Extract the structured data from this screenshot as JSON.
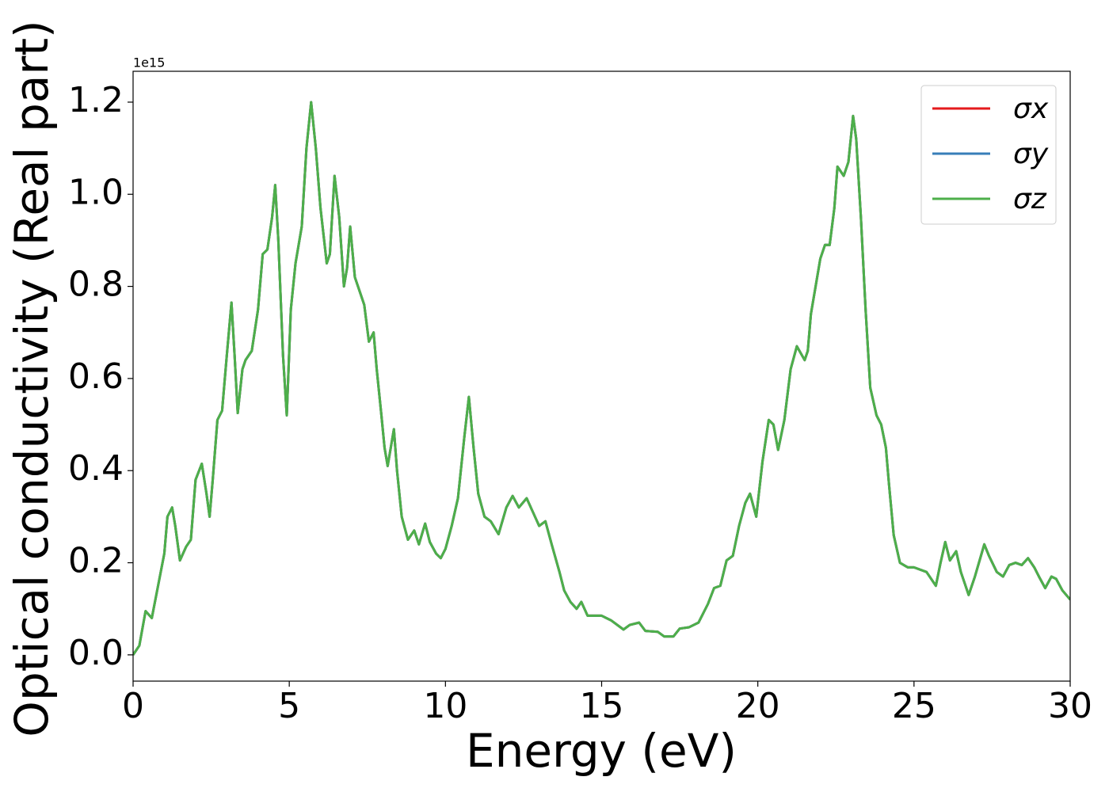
{
  "chart_data": {
    "type": "line",
    "xlabel": "Energy (eV)",
    "ylabel": "Optical conductivity (Real part)",
    "y_offset_label": "1e15",
    "x": [
      0,
      0.2,
      0.4,
      0.6,
      0.8,
      1.0,
      1.1,
      1.25,
      1.35,
      1.5,
      1.7,
      1.85,
      2.0,
      2.2,
      2.35,
      2.45,
      2.55,
      2.7,
      2.85,
      3.0,
      3.15,
      3.25,
      3.35,
      3.5,
      3.6,
      3.8,
      4.0,
      4.15,
      4.3,
      4.45,
      4.55,
      4.65,
      4.8,
      4.92,
      5.05,
      5.2,
      5.4,
      5.55,
      5.7,
      5.85,
      6.0,
      6.2,
      6.3,
      6.45,
      6.6,
      6.75,
      6.85,
      6.95,
      7.1,
      7.25,
      7.4,
      7.55,
      7.7,
      7.8,
      7.95,
      8.05,
      8.15,
      8.35,
      8.45,
      8.6,
      8.8,
      9.0,
      9.15,
      9.35,
      9.5,
      9.7,
      9.85,
      10.0,
      10.2,
      10.4,
      10.6,
      10.75,
      10.9,
      11.05,
      11.25,
      11.45,
      11.7,
      11.95,
      12.15,
      12.35,
      12.6,
      12.8,
      13.0,
      13.2,
      13.4,
      13.65,
      13.8,
      14.0,
      14.2,
      14.35,
      14.55,
      14.8,
      15.0,
      15.3,
      15.7,
      15.9,
      16.2,
      16.4,
      16.8,
      17.0,
      17.3,
      17.5,
      17.8,
      18.1,
      18.4,
      18.6,
      18.8,
      19.0,
      19.2,
      19.4,
      19.6,
      19.75,
      19.95,
      20.15,
      20.35,
      20.5,
      20.65,
      20.85,
      21.05,
      21.25,
      21.5,
      21.6,
      21.7,
      21.85,
      22.0,
      22.15,
      22.3,
      22.45,
      22.55,
      22.75,
      22.9,
      23.05,
      23.15,
      23.3,
      23.45,
      23.6,
      23.8,
      23.95,
      24.1,
      24.2,
      24.35,
      24.55,
      24.8,
      25.0,
      25.4,
      25.7,
      25.85,
      26.0,
      26.15,
      26.35,
      26.5,
      26.75,
      26.95,
      27.25,
      27.4,
      27.65,
      27.85,
      28.05,
      28.25,
      28.45,
      28.65,
      28.85,
      29.0,
      29.2,
      29.4,
      29.55,
      29.75,
      30.0
    ],
    "series": [
      {
        "name": "σx",
        "color": "#e41a1c",
        "values": [
          0,
          0.02,
          0.095,
          0.08,
          0.15,
          0.22,
          0.3,
          0.32,
          0.28,
          0.205,
          0.235,
          0.25,
          0.38,
          0.415,
          0.35,
          0.3,
          0.38,
          0.51,
          0.53,
          0.65,
          0.765,
          0.65,
          0.525,
          0.62,
          0.64,
          0.66,
          0.75,
          0.87,
          0.88,
          0.95,
          1.02,
          0.9,
          0.65,
          0.52,
          0.75,
          0.85,
          0.93,
          1.1,
          1.2,
          1.1,
          0.97,
          0.85,
          0.87,
          1.04,
          0.95,
          0.8,
          0.84,
          0.93,
          0.82,
          0.79,
          0.76,
          0.68,
          0.7,
          0.62,
          0.52,
          0.45,
          0.41,
          0.49,
          0.4,
          0.3,
          0.25,
          0.27,
          0.24,
          0.285,
          0.245,
          0.22,
          0.21,
          0.23,
          0.28,
          0.34,
          0.47,
          0.56,
          0.45,
          0.35,
          0.3,
          0.29,
          0.262,
          0.32,
          0.345,
          0.32,
          0.34,
          0.31,
          0.28,
          0.29,
          0.24,
          0.18,
          0.14,
          0.115,
          0.1,
          0.115,
          0.085,
          0.085,
          0.085,
          0.075,
          0.055,
          0.065,
          0.07,
          0.052,
          0.05,
          0.04,
          0.04,
          0.057,
          0.06,
          0.07,
          0.11,
          0.145,
          0.15,
          0.205,
          0.215,
          0.28,
          0.33,
          0.35,
          0.3,
          0.42,
          0.51,
          0.5,
          0.445,
          0.51,
          0.62,
          0.67,
          0.64,
          0.66,
          0.74,
          0.8,
          0.86,
          0.89,
          0.89,
          0.97,
          1.06,
          1.04,
          1.07,
          1.17,
          1.12,
          0.95,
          0.75,
          0.58,
          0.52,
          0.5,
          0.45,
          0.37,
          0.26,
          0.2,
          0.19,
          0.19,
          0.18,
          0.15,
          0.2,
          0.245,
          0.205,
          0.225,
          0.18,
          0.13,
          0.17,
          0.24,
          0.215,
          0.18,
          0.17,
          0.195,
          0.2,
          0.195,
          0.21,
          0.19,
          0.17,
          0.145,
          0.17,
          0.165,
          0.14,
          0.12
        ]
      },
      {
        "name": "σy",
        "color": "#377eb8",
        "values": [
          0,
          0.02,
          0.095,
          0.08,
          0.15,
          0.22,
          0.3,
          0.32,
          0.28,
          0.205,
          0.235,
          0.25,
          0.38,
          0.415,
          0.35,
          0.3,
          0.38,
          0.51,
          0.53,
          0.65,
          0.765,
          0.65,
          0.525,
          0.62,
          0.64,
          0.66,
          0.75,
          0.87,
          0.88,
          0.95,
          1.02,
          0.9,
          0.65,
          0.52,
          0.75,
          0.85,
          0.93,
          1.1,
          1.2,
          1.1,
          0.97,
          0.85,
          0.87,
          1.04,
          0.95,
          0.8,
          0.84,
          0.93,
          0.82,
          0.79,
          0.76,
          0.68,
          0.7,
          0.62,
          0.52,
          0.45,
          0.41,
          0.49,
          0.4,
          0.3,
          0.25,
          0.27,
          0.24,
          0.285,
          0.245,
          0.22,
          0.21,
          0.23,
          0.28,
          0.34,
          0.47,
          0.56,
          0.45,
          0.35,
          0.3,
          0.29,
          0.262,
          0.32,
          0.345,
          0.32,
          0.34,
          0.31,
          0.28,
          0.29,
          0.24,
          0.18,
          0.14,
          0.115,
          0.1,
          0.115,
          0.085,
          0.085,
          0.085,
          0.075,
          0.055,
          0.065,
          0.07,
          0.052,
          0.05,
          0.04,
          0.04,
          0.057,
          0.06,
          0.07,
          0.11,
          0.145,
          0.15,
          0.205,
          0.215,
          0.28,
          0.33,
          0.35,
          0.3,
          0.42,
          0.51,
          0.5,
          0.445,
          0.51,
          0.62,
          0.67,
          0.64,
          0.66,
          0.74,
          0.8,
          0.86,
          0.89,
          0.89,
          0.97,
          1.06,
          1.04,
          1.07,
          1.17,
          1.12,
          0.95,
          0.75,
          0.58,
          0.52,
          0.5,
          0.45,
          0.37,
          0.26,
          0.2,
          0.19,
          0.19,
          0.18,
          0.15,
          0.2,
          0.245,
          0.205,
          0.225,
          0.18,
          0.13,
          0.17,
          0.24,
          0.215,
          0.18,
          0.17,
          0.195,
          0.2,
          0.195,
          0.21,
          0.19,
          0.17,
          0.145,
          0.17,
          0.165,
          0.14,
          0.12
        ]
      },
      {
        "name": "σz",
        "color": "#4daf4a",
        "values": [
          0,
          0.02,
          0.095,
          0.08,
          0.15,
          0.22,
          0.3,
          0.32,
          0.28,
          0.205,
          0.235,
          0.25,
          0.38,
          0.415,
          0.35,
          0.3,
          0.38,
          0.51,
          0.53,
          0.65,
          0.765,
          0.65,
          0.525,
          0.62,
          0.64,
          0.66,
          0.75,
          0.87,
          0.88,
          0.95,
          1.02,
          0.9,
          0.65,
          0.52,
          0.75,
          0.85,
          0.93,
          1.1,
          1.2,
          1.1,
          0.97,
          0.85,
          0.87,
          1.04,
          0.95,
          0.8,
          0.84,
          0.93,
          0.82,
          0.79,
          0.76,
          0.68,
          0.7,
          0.62,
          0.52,
          0.45,
          0.41,
          0.49,
          0.4,
          0.3,
          0.25,
          0.27,
          0.24,
          0.285,
          0.245,
          0.22,
          0.21,
          0.23,
          0.28,
          0.34,
          0.47,
          0.56,
          0.45,
          0.35,
          0.3,
          0.29,
          0.262,
          0.32,
          0.345,
          0.32,
          0.34,
          0.31,
          0.28,
          0.29,
          0.24,
          0.18,
          0.14,
          0.115,
          0.1,
          0.115,
          0.085,
          0.085,
          0.085,
          0.075,
          0.055,
          0.065,
          0.07,
          0.052,
          0.05,
          0.04,
          0.04,
          0.057,
          0.06,
          0.07,
          0.11,
          0.145,
          0.15,
          0.205,
          0.215,
          0.28,
          0.33,
          0.35,
          0.3,
          0.42,
          0.51,
          0.5,
          0.445,
          0.51,
          0.62,
          0.67,
          0.64,
          0.66,
          0.74,
          0.8,
          0.86,
          0.89,
          0.89,
          0.97,
          1.06,
          1.04,
          1.07,
          1.17,
          1.12,
          0.95,
          0.75,
          0.58,
          0.52,
          0.5,
          0.45,
          0.37,
          0.26,
          0.2,
          0.19,
          0.19,
          0.18,
          0.15,
          0.2,
          0.245,
          0.205,
          0.225,
          0.18,
          0.13,
          0.17,
          0.24,
          0.215,
          0.18,
          0.17,
          0.195,
          0.2,
          0.195,
          0.21,
          0.19,
          0.17,
          0.145,
          0.17,
          0.165,
          0.14,
          0.12
        ]
      }
    ],
    "xlim": [
      0,
      30
    ],
    "xticks": [
      0,
      5,
      10,
      15,
      20,
      25,
      30
    ],
    "ylim": [
      -0.057,
      1.267
    ],
    "yticks": [
      {
        "value": 0,
        "label": "0.0"
      },
      0.2,
      0.4,
      0.6,
      0.8,
      {
        "value": 1,
        "label": "1.0"
      },
      1.2
    ],
    "grid": false,
    "legend": "upper right"
  }
}
